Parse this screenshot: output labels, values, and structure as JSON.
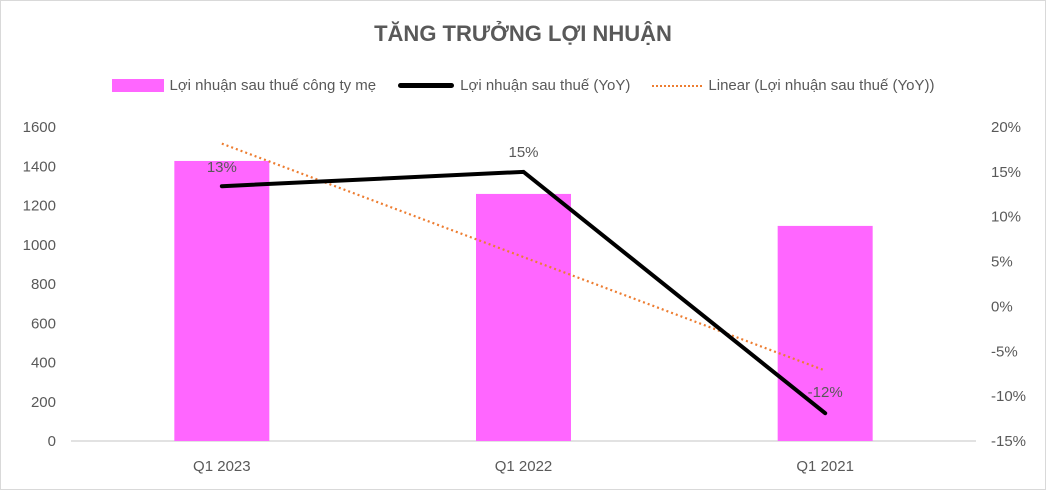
{
  "chart_data": {
    "type": "bar+line",
    "title": "TĂNG TRƯỞNG LỢI NHUẬN",
    "categories": [
      "Q1 2023",
      "Q1 2022",
      "Q1 2021"
    ],
    "series": [
      {
        "name": "Lợi nhuận sau thuế công ty mẹ",
        "type": "bar",
        "axis": "left",
        "color": "#ff66ff",
        "values": [
          1427,
          1259,
          1096
        ]
      },
      {
        "name": "Lợi nhuận sau thuế (YoY)",
        "type": "line",
        "axis": "right",
        "color": "#000000",
        "values": [
          13.4,
          15.0,
          -11.9
        ],
        "data_labels": [
          "13%",
          "15%",
          "-12%"
        ]
      },
      {
        "name": "Linear (Lợi nhuận sau thuế (YoY))",
        "type": "trendline-linear",
        "axis": "right",
        "color": "#ed7d31"
      }
    ],
    "y_left": {
      "range": [
        0,
        1600
      ],
      "ticks": [
        "0",
        "200",
        "400",
        "600",
        "800",
        "1000",
        "1200",
        "1400",
        "1600"
      ]
    },
    "y_right": {
      "range": [
        -15,
        20
      ],
      "ticks": [
        "-15%",
        "-10%",
        "-5%",
        "0%",
        "5%",
        "10%",
        "15%",
        "20%"
      ]
    },
    "grid": false,
    "legend_position": "top"
  }
}
